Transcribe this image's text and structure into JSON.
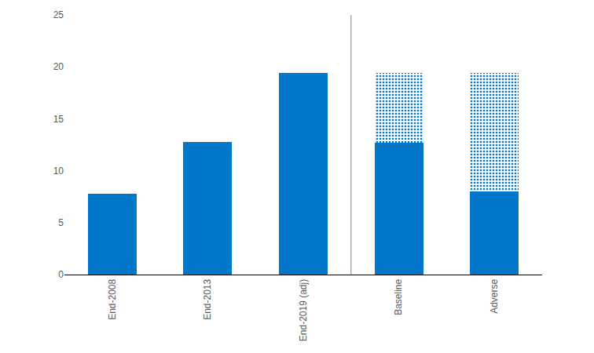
{
  "chart_data": {
    "type": "bar",
    "categories": [
      "End-2008",
      "End-2013",
      "End-2019 (adj)",
      "Baseline",
      "Adverse"
    ],
    "series": [
      {
        "color": "#0077c8",
        "marker": "solid",
        "values": [
          7.8,
          12.8,
          19.4,
          12.7,
          8.0
        ]
      },
      {
        "color": "#0077c8",
        "marker": "dotted",
        "values": [
          null,
          null,
          null,
          6.7,
          11.4
        ]
      }
    ],
    "stacked": true,
    "ylim": [
      0,
      25
    ],
    "yticks": [
      0,
      5,
      10,
      15,
      20,
      25
    ],
    "grid": false
  }
}
